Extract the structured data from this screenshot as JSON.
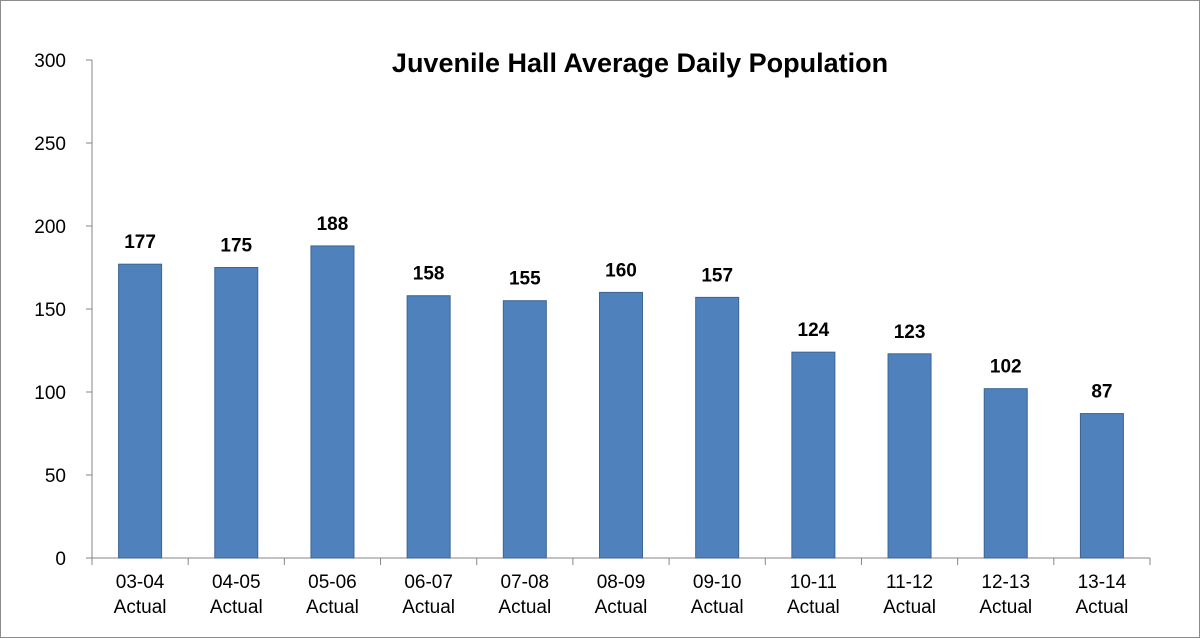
{
  "chart_data": {
    "type": "bar",
    "title": "Juvenile Hall Average Daily Population",
    "categories": [
      "03-04 Actual",
      "04-05 Actual",
      "05-06 Actual",
      "06-07 Actual",
      "07-08 Actual",
      "08-09 Actual",
      "09-10 Actual",
      "10-11 Actual",
      "11-12 Actual",
      "12-13 Actual",
      "13-14 Actual"
    ],
    "values": [
      177,
      175,
      188,
      158,
      155,
      160,
      157,
      124,
      123,
      102,
      87
    ],
    "color": "#4f81bd",
    "ylim": [
      0,
      300
    ],
    "yticks": [
      0,
      50,
      100,
      150,
      200,
      250,
      300
    ],
    "grid": false
  }
}
